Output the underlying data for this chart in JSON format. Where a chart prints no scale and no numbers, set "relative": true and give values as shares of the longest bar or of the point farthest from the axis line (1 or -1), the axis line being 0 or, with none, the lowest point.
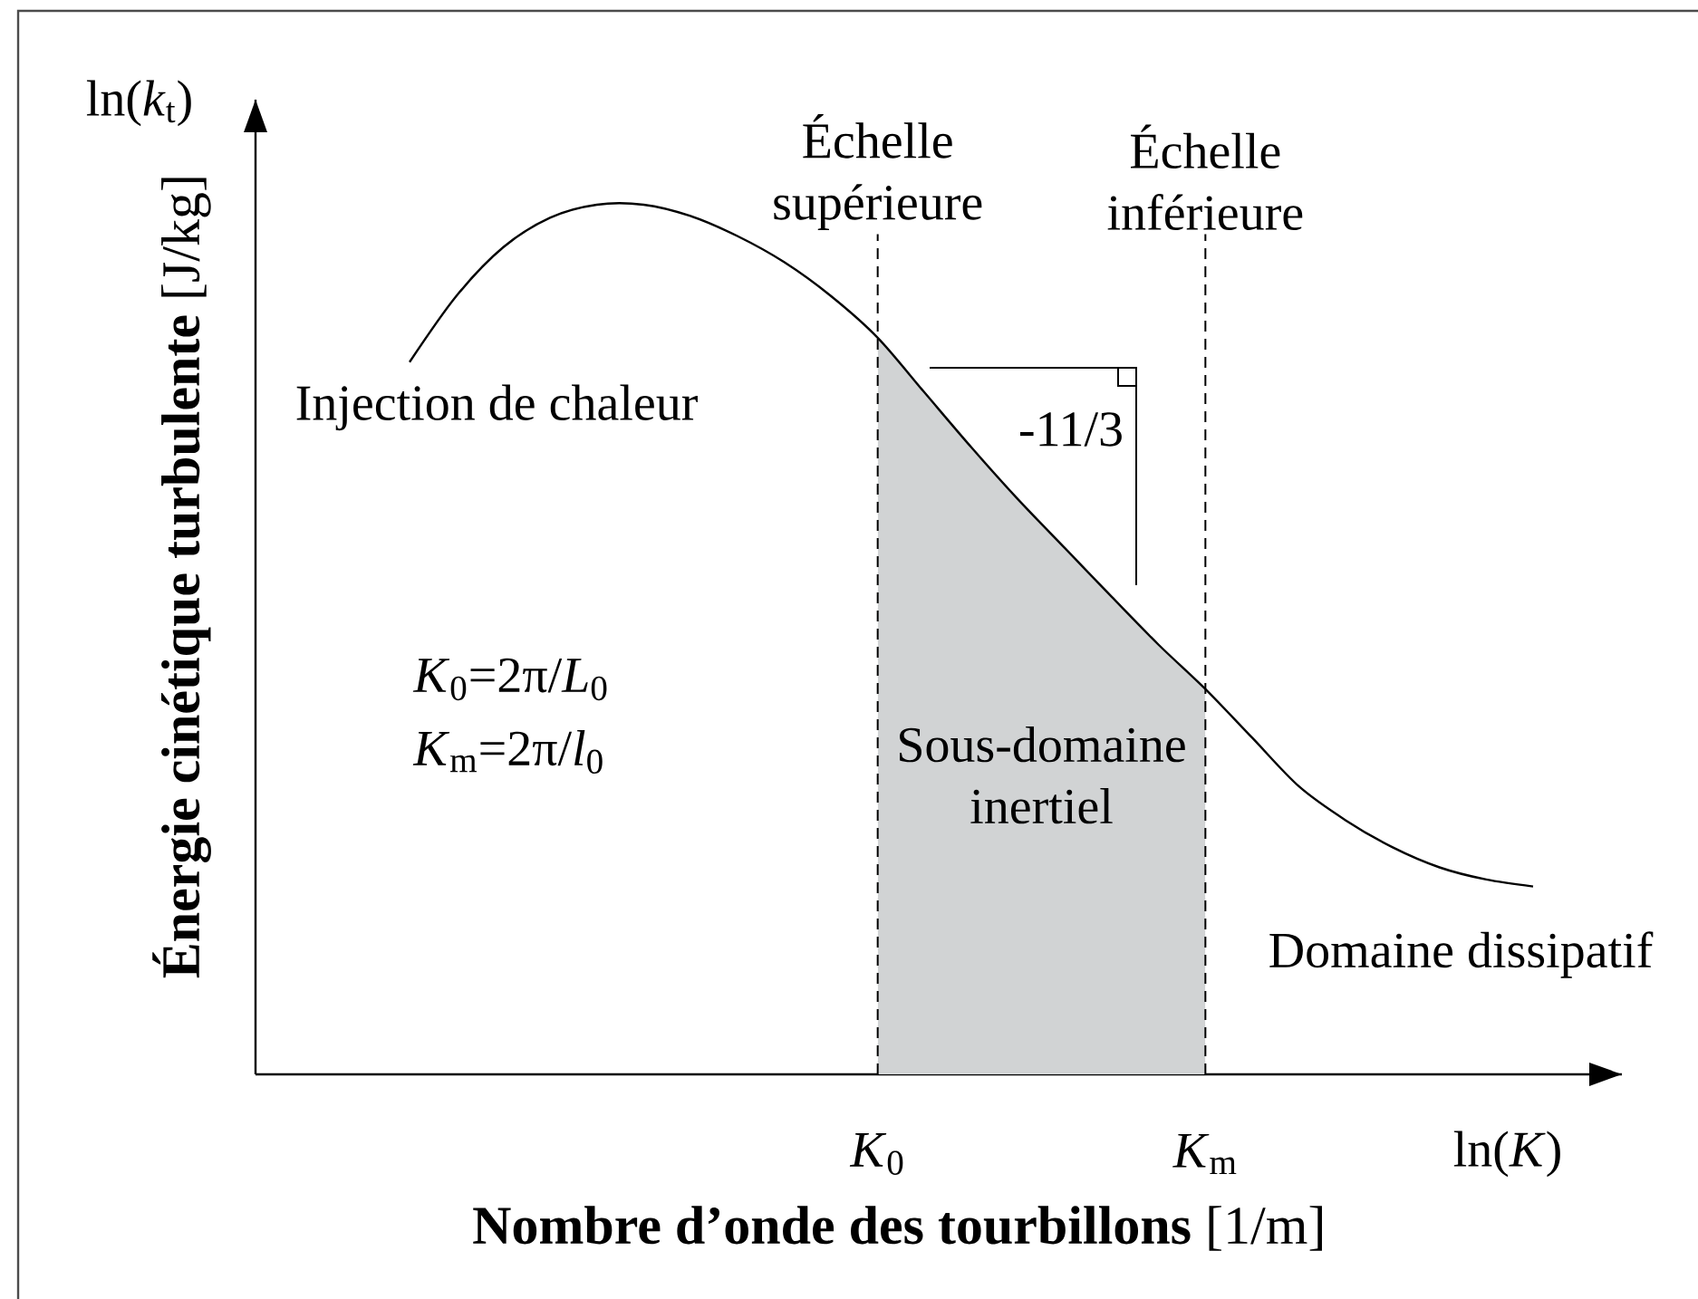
{
  "chart_data": {
    "type": "line",
    "relative": true,
    "xlabel": "**Nombre d’onde des tourbillons** [1/m]",
    "ylabel": "**Énergie cinétique turbulente** [J/kg]",
    "categories": [
      null,
      null,
      null,
      null,
      null,
      null,
      null,
      null,
      null,
      null,
      "*K*$_{0}$",
      null,
      null,
      null,
      null,
      null,
      null,
      "*K*$_{m}$",
      null,
      null,
      null,
      null,
      null,
      null,
      null
    ],
    "values": [
      0.819,
      0.895,
      0.951,
      0.985,
      1.0,
      1.0,
      0.987,
      0.964,
      0.934,
      0.895,
      0.847,
      0.784,
      0.721,
      0.661,
      0.605,
      0.549,
      0.494,
      0.443,
      0.387,
      0.331,
      0.292,
      0.261,
      0.238,
      0.224,
      0.216
    ],
    "color": "#000000",
    "ref_lines": [
      {
        "axis": "x",
        "value": "*K*$_{0}$",
        "label": "Échelle supérieure",
        "line_style": "dashed"
      },
      {
        "axis": "x",
        "value": "*K*$_{m}$",
        "label": "Échelle inférieure",
        "line_style": "dashed"
      }
    ],
    "bands": [
      {
        "axis": "x",
        "from": "*K*$_{0}$",
        "to": "*K*$_{m}$",
        "label": "Sous-domaine inertiel",
        "color": "#d1d3d4"
      }
    ],
    "annotations": [
      "ln(*k*$_{t}$)",
      "Injection de chaleur",
      "*K*$_{0}$=2π/*L*$_{0}$",
      "*K*$_{m}$=2π/*l*$_{0}$",
      "-11/3",
      "Domaine dissipatif",
      "ln(*K*)"
    ]
  }
}
